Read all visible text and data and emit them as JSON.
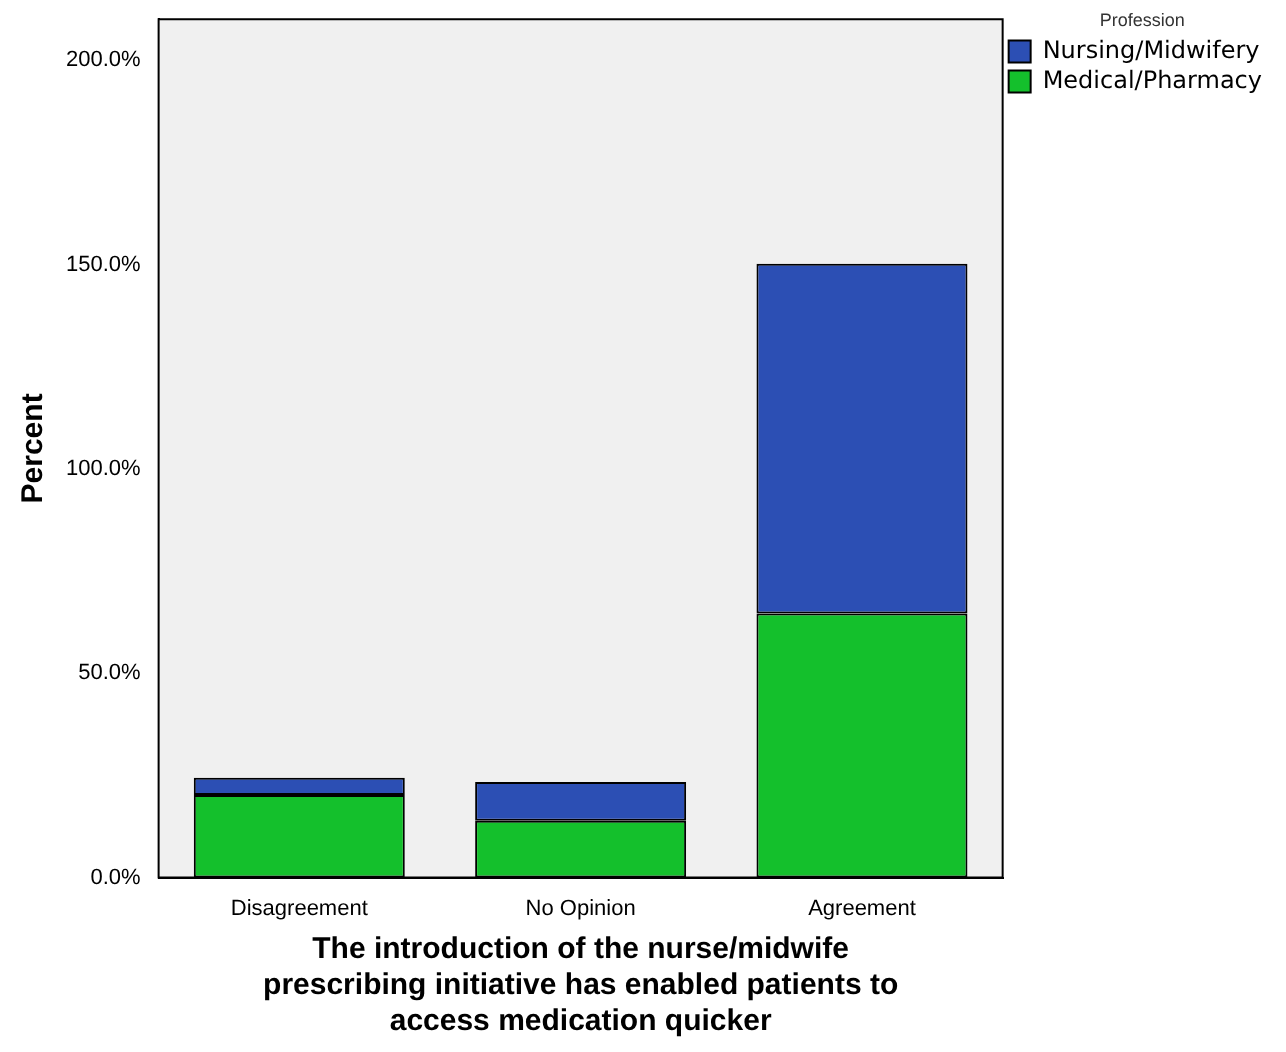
{
  "chart_data": {
    "type": "bar",
    "stacked": true,
    "xlabel": "The introduction of the nurse/midwife prescribing initiative has enabled patients to access medication quicker",
    "ylabel": "Percent",
    "legend_title": "Profession",
    "legend": "top right",
    "grid": false,
    "categories": [
      "Disagreement",
      "No Opinion",
      "Agreement"
    ],
    "series": [
      {
        "name": "Medical/Pharmacy",
        "color": "#14c02c",
        "values": [
          20.2,
          13.9,
          64.6
        ]
      },
      {
        "name": "Nursing/Midwifery",
        "color": "#2c4fb4",
        "values": [
          4.2,
          9.5,
          85.6
        ]
      }
    ],
    "ylim": [
      0,
      210
    ],
    "yticks": [
      {
        "value": 0,
        "label": "0.0%"
      },
      {
        "value": 50,
        "label": "50.0%"
      },
      {
        "value": 100,
        "label": "100.0%"
      },
      {
        "value": 150,
        "label": "150.0%"
      },
      {
        "value": 200,
        "label": "200.0%"
      }
    ]
  }
}
